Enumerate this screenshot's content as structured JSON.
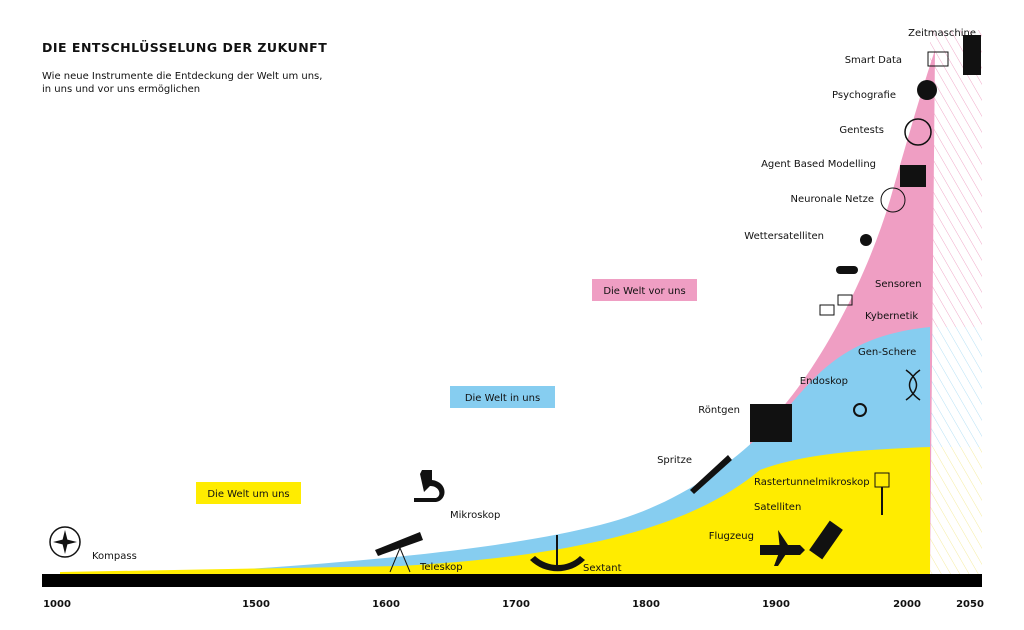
{
  "header": {
    "title": "DIE ENTSCHLÜSSELUNG DER ZUKUNFT",
    "subtitle": [
      "Wie neue Instrumente die Entdeckung der Welt um uns,",
      "in uns und vor uns ermöglichen"
    ]
  },
  "zones": [
    "Die Welt um uns",
    "Die Welt in uns",
    "Die Welt vor uns"
  ],
  "timeline": [
    "1000",
    "1500",
    "1600",
    "1700",
    "1800",
    "1900",
    "2000",
    "2050"
  ],
  "instruments": [
    "Kompass",
    "Teleskop",
    "Mikroskop",
    "Sextant",
    "Spritze",
    "Röntgen",
    "Flugzeug",
    "Satelliten",
    "Rastertunnelmikroskop",
    "Endoskop",
    "Gen-Schere",
    "Kybernetik",
    "Sensoren",
    "Wettersatelliten",
    "Neuronale Netze",
    "Agent Based Modelling",
    "Gentests",
    "Psychografie",
    "Smart Data",
    "Zeitmaschine"
  ]
}
